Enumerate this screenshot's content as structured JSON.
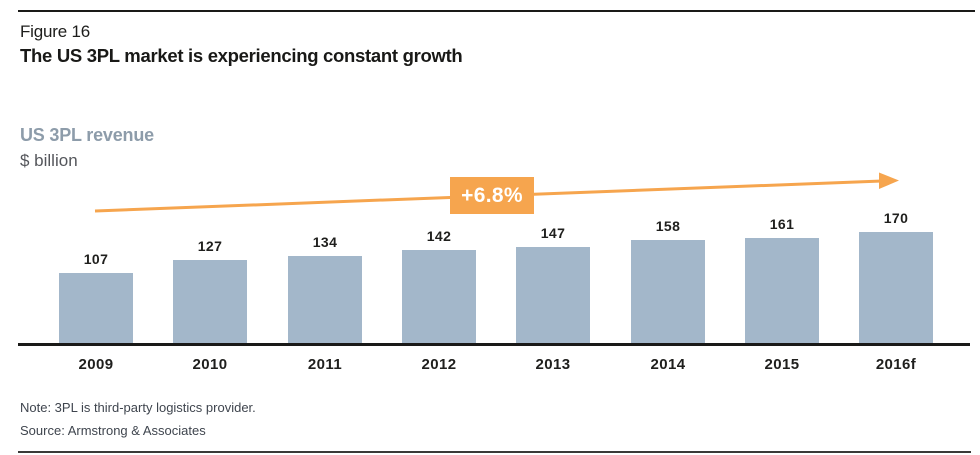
{
  "figure": {
    "label": "Figure 16",
    "title": "The US 3PL market is experiencing constant growth"
  },
  "chart_header": {
    "title": "US 3PL revenue",
    "unit": "$ billion"
  },
  "growth_annotation": {
    "label": "+6.8%"
  },
  "chart_data": {
    "type": "bar",
    "title": "US 3PL revenue",
    "ylabel": "$ billion",
    "categories": [
      "2009",
      "2010",
      "2011",
      "2012",
      "2013",
      "2014",
      "2015",
      "2016f"
    ],
    "values": [
      107,
      127,
      134,
      142,
      147,
      158,
      161,
      170
    ],
    "ylim": [
      0,
      170
    ],
    "grid": false,
    "legend": "none",
    "annotations": [
      "+6.8%"
    ],
    "bar_color": "#a3b7ca",
    "accent_color": "#f6a54e"
  },
  "footer": {
    "note": "Note: 3PL is third-party logistics provider.",
    "source": "Source: Armstrong & Associates"
  }
}
